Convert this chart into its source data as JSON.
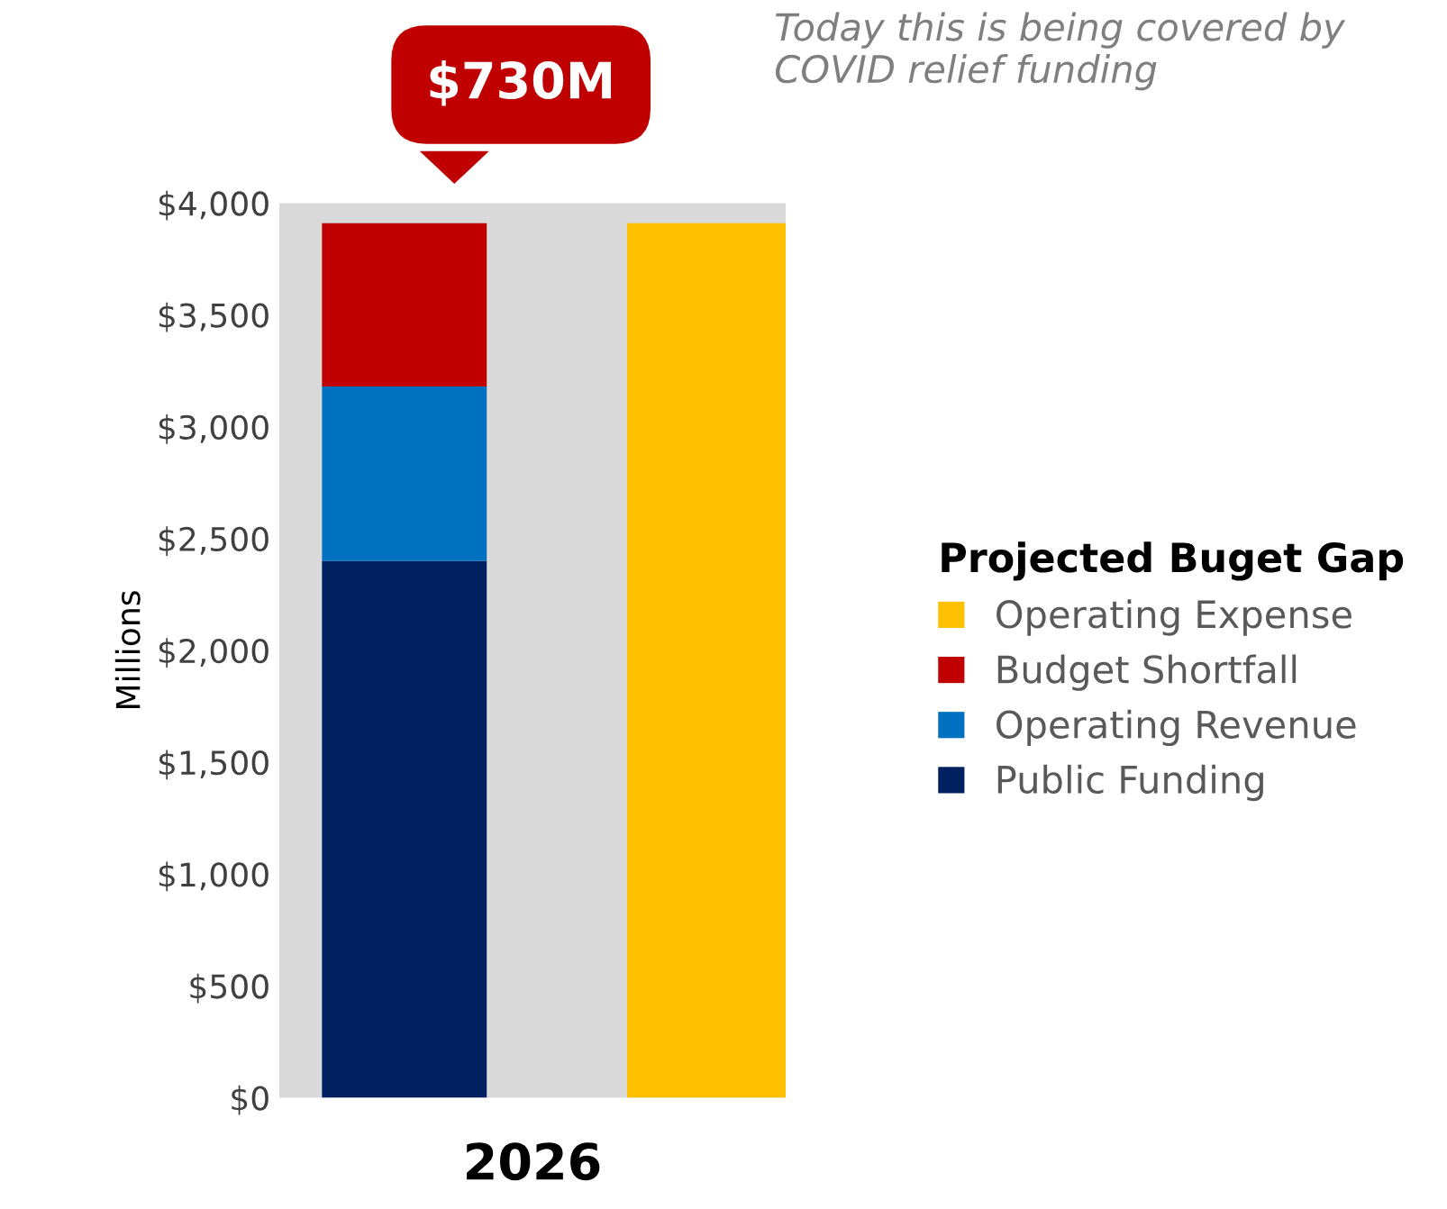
{
  "chart_data": {
    "type": "bar",
    "stacked": true,
    "categories": [
      null,
      null
    ],
    "xlabel": "2026",
    "ylabel": "Millions",
    "legend_title": "Projected Buget Gap",
    "series": [
      {
        "name": "Public Funding",
        "color": "#002060",
        "values": [
          2400,
          null
        ]
      },
      {
        "name": "Operating Revenue",
        "color": "#0070c0",
        "values": [
          780,
          null
        ]
      },
      {
        "name": "Budget Shortfall",
        "color": "#c00000",
        "values": [
          730,
          null
        ]
      },
      {
        "name": "Operating Expense",
        "color": "#ffc000",
        "values": [
          null,
          3910
        ]
      }
    ],
    "ylim": [
      0,
      4000
    ],
    "yticks": [
      {
        "value": 0,
        "label": "$0"
      },
      {
        "value": 500,
        "label": "$500"
      },
      {
        "value": 1000,
        "label": "$1,000"
      },
      {
        "value": 1500,
        "label": "$1,500"
      },
      {
        "value": 2000,
        "label": "$2,000"
      },
      {
        "value": 2500,
        "label": "$2,500"
      },
      {
        "value": 3000,
        "label": "$3,000"
      },
      {
        "value": 3500,
        "label": "$3,500"
      },
      {
        "value": 4000,
        "label": "$4,000"
      }
    ],
    "grid": false,
    "legend": "right",
    "annotations": [
      "$730M",
      "Today this is being covered by\nCOVID relief funding"
    ]
  }
}
